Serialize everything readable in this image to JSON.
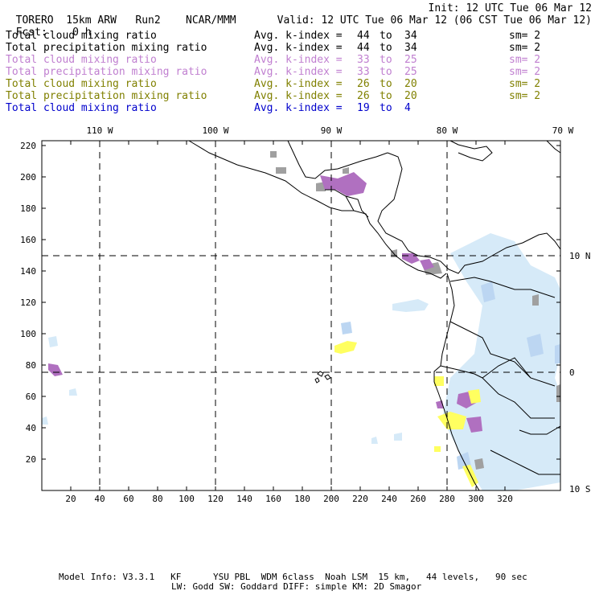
{
  "header": {
    "model": "TORERO",
    "resolution": "15km ARW",
    "run": "Run2",
    "org": "NCAR/MMM",
    "init": "Init: 12 UTC Tue 06 Mar 12",
    "fcst_label": "Fcst:",
    "fcst_value": "0 h",
    "valid": "Valid: 12 UTC Tue 06 Mar 12 (06 CST Tue 06 Mar 12)"
  },
  "legend": [
    {
      "name": "Total cloud mixing ratio",
      "kindex_label": "Avg. k-index =",
      "from": "44",
      "to_label": "to",
      "to": "34",
      "sm": "sm= 2",
      "color": "#000000"
    },
    {
      "name": "Total precipitation mixing ratio",
      "kindex_label": "Avg. k-index =",
      "from": "44",
      "to_label": "to",
      "to": "34",
      "sm": "sm= 2",
      "color": "#000000"
    },
    {
      "name": "Total cloud mixing ratio",
      "kindex_label": "Avg. k-index =",
      "from": "33",
      "to_label": "to",
      "to": "25",
      "sm": "sm= 2",
      "color": "#c07fd0"
    },
    {
      "name": "Total precipitation mixing ratio",
      "kindex_label": "Avg. k-index =",
      "from": "33",
      "to_label": "to",
      "to": "25",
      "sm": "sm= 2",
      "color": "#c07fd0"
    },
    {
      "name": "Total cloud mixing ratio",
      "kindex_label": "Avg. k-index =",
      "from": "26",
      "to_label": "to",
      "to": "20",
      "sm": "sm= 2",
      "color": "#808000"
    },
    {
      "name": "Total precipitation mixing ratio",
      "kindex_label": "Avg. k-index =",
      "from": "26",
      "to_label": "to",
      "to": "20",
      "sm": "sm= 2",
      "color": "#808000"
    },
    {
      "name": "Total cloud mixing ratio",
      "kindex_label": "Avg. k-index =",
      "from": "19",
      "to_label": "to",
      "to": "4",
      "sm": "",
      "color": "#0000cc"
    }
  ],
  "axes": {
    "top_lon_labels": [
      "110 W",
      "100 W",
      "90 W",
      "80 W",
      "70 W"
    ],
    "right_lat_labels": [
      "10 N",
      "0",
      "10 S"
    ],
    "left_ticks": [
      "220",
      "200",
      "180",
      "160",
      "140",
      "120",
      "100",
      "80",
      "60",
      "40",
      "20"
    ],
    "bottom_ticks": [
      "20",
      "40",
      "60",
      "80",
      "100",
      "120",
      "140",
      "160",
      "180",
      "200",
      "220",
      "240",
      "260",
      "280",
      "300",
      "320"
    ]
  },
  "footer": {
    "line1": "Model Info: V3.3.1   KF      YSU PBL  WDM 6class  Noah LSM  15 km,   44 levels,   90 sec",
    "line2": "LW: Godd SW: Goddard DIFF: simple KM: 2D Smagor"
  },
  "colors": {
    "gray_cloud": "#a0a0a0",
    "purple_precip": "#b070c0",
    "yellow_precip": "#ffff60",
    "light_blue_cloud": "#d8ecfa",
    "blue_cloud": "#bcd8f4"
  }
}
